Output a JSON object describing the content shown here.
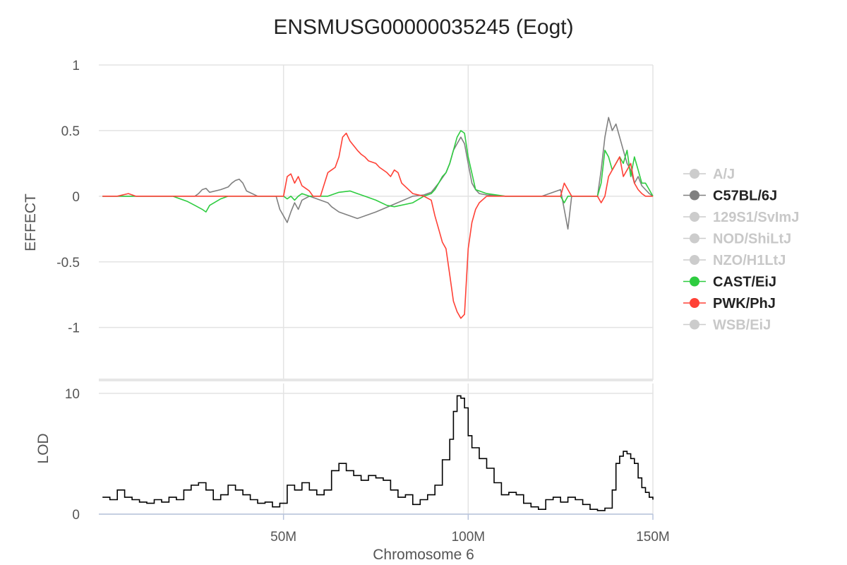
{
  "chart_data": [
    {
      "type": "line",
      "title": "ENSMUSG00000035245 (Eogt)",
      "ylabel": "EFFECT",
      "xlim": [
        0,
        150
      ],
      "ylim": [
        -1.4,
        1
      ],
      "x_ticks": [
        50,
        100,
        150
      ],
      "y_ticks": [
        1,
        0.5,
        0,
        -0.5,
        -1
      ],
      "y_tick_labels": [
        "1",
        "0.5",
        "0",
        "-0.5",
        "-1"
      ],
      "grid": true,
      "legend_position": "right",
      "series": [
        {
          "name": "A/J",
          "color": "#cccccc",
          "active": false,
          "x": [],
          "y": []
        },
        {
          "name": "C57BL/6J",
          "color": "#808080",
          "active": true,
          "x": [
            1,
            10,
            18,
            22,
            26,
            27,
            28,
            29,
            30,
            33,
            35,
            36,
            37,
            38,
            39,
            40,
            43,
            48,
            49,
            50,
            51,
            52,
            53,
            54,
            55,
            57,
            62,
            63,
            65,
            70,
            75,
            80,
            85,
            88,
            90,
            92,
            94,
            95,
            96,
            97,
            98,
            99,
            100,
            101,
            102,
            103,
            105,
            110,
            115,
            120,
            125,
            126,
            127,
            128,
            130,
            135,
            136,
            137,
            138,
            139,
            140,
            141,
            142,
            143,
            144,
            145,
            146,
            147,
            148,
            149,
            150
          ],
          "y": [
            0,
            0,
            0,
            0,
            0,
            0.02,
            0.05,
            0.06,
            0.03,
            0.05,
            0.07,
            0.1,
            0.12,
            0.13,
            0.1,
            0.04,
            0,
            0,
            -0.1,
            -0.15,
            -0.2,
            -0.12,
            -0.05,
            -0.1,
            -0.03,
            0,
            -0.05,
            -0.08,
            -0.12,
            -0.17,
            -0.12,
            -0.06,
            0,
            0.01,
            0.03,
            0.1,
            0.18,
            0.25,
            0.35,
            0.4,
            0.45,
            0.4,
            0.25,
            0.1,
            0.05,
            0.02,
            0.01,
            0,
            0,
            0,
            0.05,
            -0.1,
            -0.25,
            0,
            0,
            0,
            0.2,
            0.45,
            0.6,
            0.5,
            0.55,
            0.45,
            0.35,
            0.25,
            0.2,
            0.1,
            0.15,
            0.08,
            0.05,
            0.02,
            0
          ]
        },
        {
          "name": "129S1/SvImJ",
          "color": "#cccccc",
          "active": false,
          "x": [],
          "y": []
        },
        {
          "name": "NOD/ShiLtJ",
          "color": "#cccccc",
          "active": false,
          "x": [],
          "y": []
        },
        {
          "name": "NZO/H1LtJ",
          "color": "#cccccc",
          "active": false,
          "x": [],
          "y": []
        },
        {
          "name": "CAST/EiJ",
          "color": "#2ecc40",
          "active": true,
          "x": [
            1,
            5,
            10,
            20,
            24,
            26,
            28,
            29,
            30,
            33,
            35,
            38,
            40,
            45,
            50,
            51,
            52,
            53,
            54,
            55,
            57,
            60,
            62,
            65,
            68,
            70,
            72,
            75,
            78,
            80,
            85,
            88,
            90,
            91,
            92,
            93,
            94,
            95,
            96,
            97,
            98,
            99,
            100,
            102,
            105,
            110,
            115,
            120,
            125,
            126,
            127,
            130,
            135,
            136,
            137,
            138,
            139,
            140,
            141,
            142,
            143,
            144,
            145,
            146,
            147,
            148,
            149,
            150
          ],
          "y": [
            0,
            0,
            0,
            0,
            -0.04,
            -0.07,
            -0.1,
            -0.12,
            -0.07,
            -0.02,
            0,
            0,
            0,
            0,
            0,
            -0.02,
            0,
            -0.03,
            0,
            0.02,
            0,
            0,
            0,
            0.03,
            0.04,
            0.02,
            0,
            -0.03,
            -0.07,
            -0.08,
            -0.05,
            0,
            0.02,
            0.05,
            0.1,
            0.15,
            0.18,
            0.25,
            0.35,
            0.45,
            0.5,
            0.48,
            0.3,
            0.05,
            0.02,
            0,
            0,
            0,
            0,
            -0.05,
            0,
            0,
            0,
            0.1,
            0.35,
            0.3,
            0.2,
            0.25,
            0.3,
            0.25,
            0.35,
            0.15,
            0.3,
            0.2,
            0.1,
            0.1,
            0.05,
            0
          ]
        },
        {
          "name": "PWK/PhJ",
          "color": "#ff4136",
          "active": true,
          "x": [
            1,
            5,
            8,
            10,
            20,
            50,
            51,
            52,
            53,
            54,
            55,
            56,
            57,
            58,
            60,
            62,
            63,
            64,
            65,
            66,
            67,
            68,
            70,
            71,
            72,
            73,
            75,
            76,
            78,
            79,
            80,
            81,
            82,
            85,
            88,
            90,
            91,
            92,
            93,
            94,
            95,
            96,
            97,
            98,
            99,
            100,
            101,
            102,
            103,
            105,
            110,
            120,
            125,
            126,
            127,
            128,
            130,
            135,
            136,
            137,
            138,
            139,
            140,
            141,
            142,
            143,
            144,
            145,
            146,
            147,
            148,
            149,
            150
          ],
          "y": [
            0,
            0,
            0.02,
            0,
            0,
            0,
            0.15,
            0.17,
            0.1,
            0.15,
            0.08,
            0.06,
            0.04,
            0,
            0,
            0.18,
            0.2,
            0.22,
            0.3,
            0.45,
            0.48,
            0.42,
            0.35,
            0.32,
            0.3,
            0.27,
            0.25,
            0.22,
            0.18,
            0.15,
            0.2,
            0.18,
            0.1,
            0.02,
            0,
            -0.03,
            -0.15,
            -0.25,
            -0.35,
            -0.4,
            -0.6,
            -0.8,
            -0.88,
            -0.93,
            -0.9,
            -0.4,
            -0.2,
            -0.1,
            -0.05,
            0,
            0,
            0,
            0,
            0.1,
            0.05,
            0,
            0,
            0,
            -0.05,
            0,
            0.15,
            0.2,
            0.25,
            0.3,
            0.15,
            0.2,
            0.25,
            0.1,
            0.05,
            0.02,
            0,
            0,
            0
          ]
        },
        {
          "name": "WSB/EiJ",
          "color": "#cccccc",
          "active": false,
          "x": [],
          "y": []
        }
      ]
    },
    {
      "type": "line",
      "ylabel": "LOD",
      "xlabel": "Chromosome 6",
      "xlim": [
        0,
        150
      ],
      "ylim": [
        0,
        10
      ],
      "x_ticks": [
        50,
        100,
        150
      ],
      "x_tick_labels": [
        "50M",
        "100M",
        "150M"
      ],
      "y_ticks": [
        10,
        0
      ],
      "y_tick_labels": [
        "10",
        "0"
      ],
      "grid": true,
      "series": [
        {
          "name": "LOD",
          "color": "#000000",
          "x": [
            1,
            3,
            5,
            7,
            9,
            11,
            13,
            15,
            17,
            19,
            21,
            23,
            25,
            27,
            29,
            31,
            33,
            35,
            37,
            39,
            41,
            43,
            45,
            47,
            49,
            51,
            53,
            55,
            57,
            59,
            61,
            63,
            65,
            67,
            69,
            71,
            73,
            75,
            77,
            79,
            81,
            83,
            85,
            87,
            89,
            91,
            93,
            95,
            96,
            97,
            98,
            99,
            100,
            101,
            103,
            105,
            107,
            109,
            111,
            113,
            115,
            117,
            119,
            121,
            123,
            125,
            127,
            129,
            131,
            133,
            135,
            137,
            139,
            140,
            141,
            142,
            143,
            144,
            145,
            146,
            147,
            148,
            149,
            150
          ],
          "y": [
            1.4,
            1.2,
            2.0,
            1.4,
            1.2,
            1.0,
            0.9,
            1.2,
            1.0,
            1.4,
            1.2,
            2.0,
            2.4,
            2.6,
            2.0,
            1.2,
            1.6,
            2.4,
            2.0,
            1.6,
            1.2,
            0.9,
            1.0,
            0.6,
            0.9,
            2.4,
            2.0,
            2.6,
            2.0,
            1.6,
            2.0,
            3.6,
            4.2,
            3.6,
            3.2,
            2.8,
            3.2,
            3.0,
            2.8,
            2.0,
            1.4,
            1.6,
            0.8,
            1.2,
            1.6,
            2.4,
            4.5,
            6.2,
            8.5,
            9.8,
            9.6,
            8.8,
            6.5,
            5.5,
            4.6,
            3.8,
            2.6,
            1.6,
            1.8,
            1.6,
            0.9,
            0.6,
            0.4,
            1.2,
            1.4,
            1.0,
            1.4,
            1.2,
            0.8,
            0.4,
            0.3,
            0.5,
            2.0,
            4.2,
            4.8,
            5.2,
            5.0,
            4.6,
            4.2,
            3.0,
            2.2,
            1.8,
            1.4,
            1.2
          ]
        }
      ]
    }
  ]
}
